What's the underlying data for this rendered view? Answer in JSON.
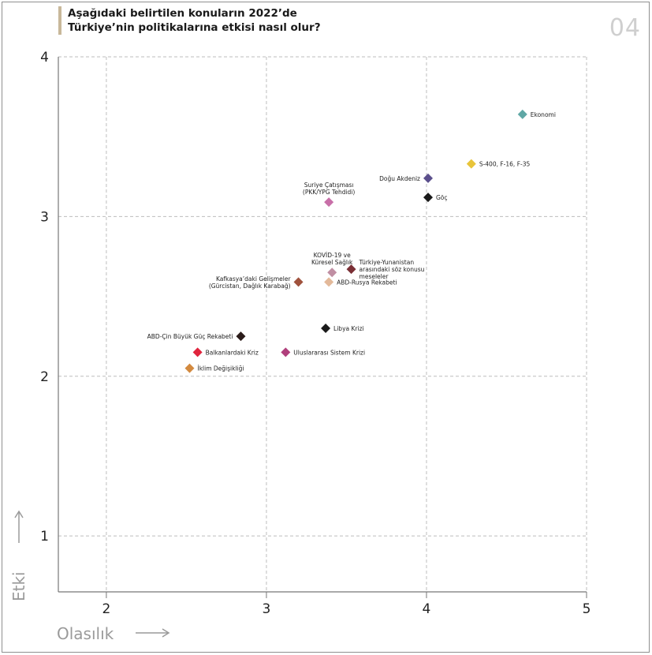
{
  "header": {
    "title_line1": "Aşağıdaki belirtilen konuların 2022’de",
    "title_line2": "Türkiye’nin politikalarına etkisi nasıl olur?",
    "page_number": "04",
    "accent_color": "#c8b89a"
  },
  "chart_data": {
    "type": "scatter",
    "xlabel": "Olasılık",
    "ylabel": "Etki",
    "xlim": [
      1.7,
      5
    ],
    "ylim": [
      0.65,
      4
    ],
    "x_ticks": [
      "2",
      "3",
      "4",
      "5"
    ],
    "y_ticks": [
      "1",
      "2",
      "3",
      "4"
    ],
    "grid": true,
    "grid_style": "dashed",
    "points": [
      {
        "label": [
          "Ekonomi"
        ],
        "x": 4.6,
        "y": 3.64,
        "color": "#5fa7a5",
        "label_side": "right"
      },
      {
        "label": [
          "S-400, F-16, F-35"
        ],
        "x": 4.28,
        "y": 3.33,
        "color": "#e8c43a",
        "label_side": "right"
      },
      {
        "label": [
          "Doğu Akdeniz"
        ],
        "x": 4.01,
        "y": 3.24,
        "color": "#5b4f8c",
        "label_side": "left"
      },
      {
        "label": [
          "Göç"
        ],
        "x": 4.01,
        "y": 3.12,
        "color": "#1a1a1a",
        "label_side": "right"
      },
      {
        "label": [
          "Suriye Çatışması",
          "(PKK/YPG Tehdidi)"
        ],
        "x": 3.39,
        "y": 3.09,
        "color": "#c86fa8",
        "label_side": "above"
      },
      {
        "label": [
          "KOVİD-19 ve",
          "Küresel Sağlık"
        ],
        "x": 3.41,
        "y": 2.65,
        "color": "#c08fa3",
        "label_side": "above"
      },
      {
        "label": [
          "Türkiye-Yunanistan",
          "arasındaki söz konusu",
          "meseleler"
        ],
        "x": 3.53,
        "y": 2.67,
        "color": "#7a2f35",
        "label_side": "right"
      },
      {
        "label": [
          "Kafkasya’daki Gelişmeler",
          "(Gürcistan, Dağlık Karabağ)"
        ],
        "x": 3.2,
        "y": 2.59,
        "color": "#a0523d",
        "label_side": "left"
      },
      {
        "label": [
          "ABD-Rusya Rekabeti"
        ],
        "x": 3.39,
        "y": 2.59,
        "color": "#e3b99a",
        "label_side": "right"
      },
      {
        "label": [
          "Libya Krizi"
        ],
        "x": 3.37,
        "y": 2.3,
        "color": "#1a1a1a",
        "label_side": "right"
      },
      {
        "label": [
          "ABD-Çin Büyük Güç Rekabeti"
        ],
        "x": 2.84,
        "y": 2.25,
        "color": "#2b1c1a",
        "label_side": "left"
      },
      {
        "label": [
          "Uluslararası Sistem Krizi"
        ],
        "x": 3.12,
        "y": 2.15,
        "color": "#b03f7c",
        "label_side": "right"
      },
      {
        "label": [
          "Balkanlardaki Kriz"
        ],
        "x": 2.57,
        "y": 2.15,
        "color": "#e0243d",
        "label_side": "right"
      },
      {
        "label": [
          "İklim Değişikliği"
        ],
        "x": 2.52,
        "y": 2.05,
        "color": "#d38a3f",
        "label_side": "right"
      }
    ]
  }
}
